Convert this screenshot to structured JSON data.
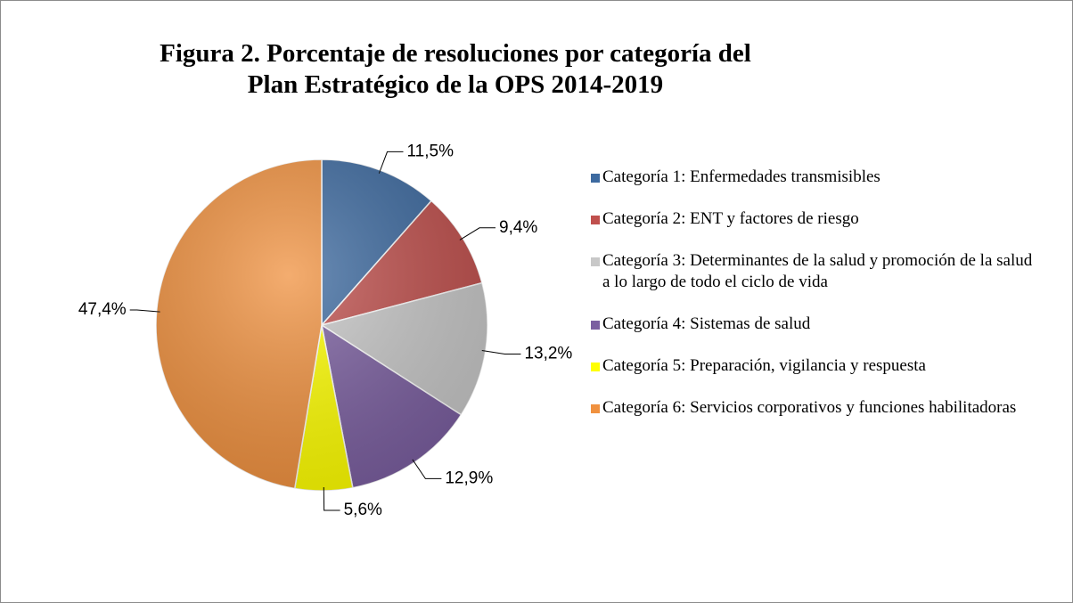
{
  "chart_data": {
    "type": "pie",
    "title": "Figura 2. Porcentaje de resoluciones por categoría del Plan Estratégico de la OPS 2014-2019",
    "categories": [
      "Categoría 1: Enfermedades transmisibles",
      "Categoría 2: ENT y factores de riesgo",
      "Categoría 3: Determinantes de la salud y promoción de la salud a lo largo de todo el ciclo de vida",
      "Categoría 4: Sistemas de salud",
      "Categoría 5: Preparación, vigilancia y respuesta",
      "Categoría 6: Servicios corporativos y funciones habilitadoras"
    ],
    "values": [
      11.5,
      9.4,
      13.2,
      12.9,
      5.6,
      47.4
    ],
    "value_labels": [
      "11,5%",
      "9,4%",
      "13,2%",
      "12,9%",
      "5,6%",
      "47,4%"
    ],
    "colors": [
      "#3d6aa0",
      "#c0504d",
      "#c8c8c8",
      "#7b5fa0",
      "#ffff00",
      "#f0913f"
    ],
    "legend": "right"
  }
}
